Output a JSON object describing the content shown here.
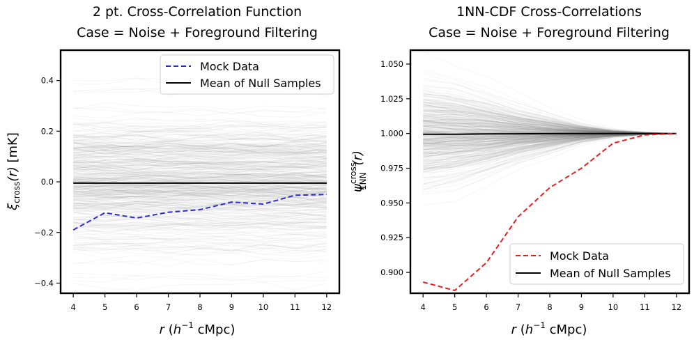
{
  "chart_data": [
    {
      "type": "line",
      "title_line1": "2 pt. Cross-Correlation Function",
      "title_line2": "Case = Noise + Foreground Filtering",
      "xlabel": "r (h⁻¹ cMpc)",
      "xlabel_parts": {
        "var": "r",
        "open": " (",
        "h": "h",
        "exp": "−1",
        "unit": " cMpc)"
      },
      "ylabel": "ξ_cross(r) [mK]",
      "ylabel_parts": {
        "xi": "ξ",
        "sub": "cross",
        "arg": "(r)",
        "unit": " [mK]"
      },
      "x": [
        4,
        5,
        6,
        7,
        8,
        9,
        10,
        11,
        12
      ],
      "xlim": [
        3.6,
        12.4
      ],
      "ylim": [
        -0.44,
        0.52
      ],
      "x_ticks": [
        4,
        5,
        6,
        7,
        8,
        9,
        10,
        11,
        12
      ],
      "y_ticks": [
        -0.4,
        -0.2,
        0.0,
        0.2,
        0.4
      ],
      "y_tick_labels": [
        "−0.4",
        "−0.2",
        "0.0",
        "0.2",
        "0.4"
      ],
      "legend_position": "top-right",
      "null_samples": {
        "count": 400,
        "spread": 0.13,
        "color": "#808080"
      },
      "series": [
        {
          "name": "Mock Data",
          "style": "dashed",
          "color": "#2a2ad6",
          "values": [
            -0.19,
            -0.122,
            -0.143,
            -0.12,
            -0.11,
            -0.08,
            -0.088,
            -0.053,
            -0.05
          ]
        },
        {
          "name": "Mean of Null Samples",
          "style": "solid",
          "color": "#000000",
          "values": [
            -0.005,
            -0.005,
            -0.005,
            -0.005,
            -0.005,
            -0.005,
            -0.005,
            -0.005,
            -0.005
          ]
        }
      ]
    },
    {
      "type": "line",
      "title_line1": "1NN-CDF Cross-Correlations",
      "title_line2": "Case = Noise + Foreground Filtering",
      "xlabel": "r (h⁻¹ cMpc)",
      "xlabel_parts": {
        "var": "r",
        "open": " (",
        "h": "h",
        "exp": "−1",
        "unit": " cMpc)"
      },
      "ylabel": "ψ_1NN^cross(r)",
      "ylabel_parts": {
        "psi": "ψ",
        "sub": "1NN",
        "sup": "cross",
        "arg": "(r)"
      },
      "x": [
        4,
        5,
        6,
        7,
        8,
        9,
        10,
        11,
        12
      ],
      "xlim": [
        3.6,
        12.4
      ],
      "ylim": [
        0.885,
        1.06
      ],
      "x_ticks": [
        4,
        5,
        6,
        7,
        8,
        9,
        10,
        11,
        12
      ],
      "y_ticks": [
        0.9,
        0.925,
        0.95,
        0.975,
        1.0,
        1.025,
        1.05
      ],
      "y_tick_labels": [
        "0.900",
        "0.925",
        "0.950",
        "0.975",
        "1.000",
        "1.025",
        "1.050"
      ],
      "legend_position": "bottom-right",
      "null_samples": {
        "count": 400,
        "color": "#808080",
        "spread": [
          0.018,
          0.016,
          0.013,
          0.009,
          0.006,
          0.003,
          0.0012,
          0.0004,
          0.0
        ]
      },
      "series": [
        {
          "name": "Mock Data",
          "style": "dashed",
          "color": "#ee1c1c",
          "values": [
            0.893,
            0.887,
            0.907,
            0.94,
            0.961,
            0.975,
            0.993,
            0.999,
            1.0
          ]
        },
        {
          "name": "Mean of Null Samples",
          "style": "solid",
          "color": "#000000",
          "values": [
            0.9995,
            0.9995,
            0.9997,
            0.9998,
            0.9999,
            1.0,
            1.0,
            1.0,
            1.0
          ]
        }
      ]
    }
  ]
}
